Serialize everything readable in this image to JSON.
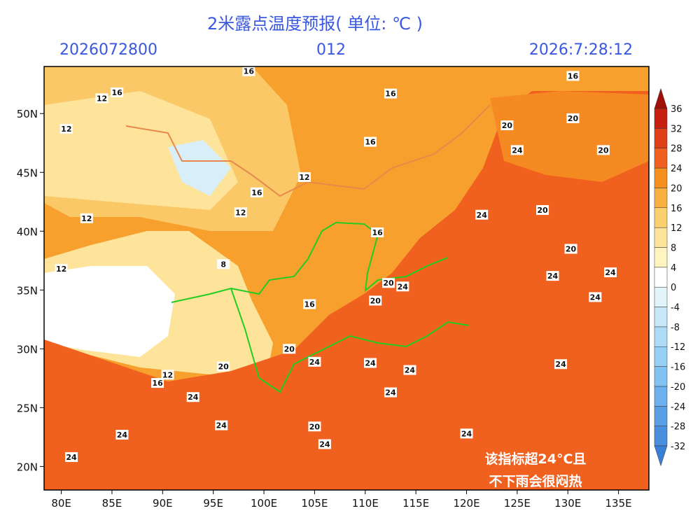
{
  "title": "2米露点温度预报( 单位: ℃ )",
  "run_time": "2026072800",
  "forecast_hour": "012",
  "valid_time": "2026:7:28:12",
  "map": {
    "lonlim": [
      78.3,
      138
    ],
    "latlim": [
      18,
      54
    ],
    "lon_ticks": [
      {
        "value": 80,
        "label": "80E"
      },
      {
        "value": 85,
        "label": "85E"
      },
      {
        "value": 90,
        "label": "90E"
      },
      {
        "value": 95,
        "label": "95E"
      },
      {
        "value": 100,
        "label": "100E"
      },
      {
        "value": 105,
        "label": "105E"
      },
      {
        "value": 110,
        "label": "110E"
      },
      {
        "value": 115,
        "label": "115E"
      },
      {
        "value": 120,
        "label": "120E"
      },
      {
        "value": 125,
        "label": "125E"
      },
      {
        "value": 130,
        "label": "130E"
      },
      {
        "value": 135,
        "label": "135E"
      }
    ],
    "lat_ticks": [
      {
        "value": 20,
        "label": "20N"
      },
      {
        "value": 25,
        "label": "25N"
      },
      {
        "value": 30,
        "label": "30N"
      },
      {
        "value": 35,
        "label": "35N"
      },
      {
        "value": 40,
        "label": "40N"
      },
      {
        "value": 45,
        "label": "45N"
      },
      {
        "value": 50,
        "label": "50N"
      }
    ],
    "contour_labels": [
      {
        "value": 16,
        "lon": 98.5,
        "lat": 53.6
      },
      {
        "value": 12,
        "lon": 84,
        "lat": 51.3
      },
      {
        "value": 16,
        "lon": 85.5,
        "lat": 51.8
      },
      {
        "value": 12,
        "lon": 80.5,
        "lat": 48.7
      },
      {
        "value": 16,
        "lon": 112.5,
        "lat": 51.7
      },
      {
        "value": 16,
        "lon": 130.5,
        "lat": 53.2
      },
      {
        "value": 20,
        "lon": 124,
        "lat": 49
      },
      {
        "value": 20,
        "lon": 130.5,
        "lat": 49.6
      },
      {
        "value": 16,
        "lon": 110.5,
        "lat": 47.6
      },
      {
        "value": 24,
        "lon": 125,
        "lat": 46.9
      },
      {
        "value": 20,
        "lon": 133.5,
        "lat": 46.9
      },
      {
        "value": 12,
        "lon": 104,
        "lat": 44.6
      },
      {
        "value": 16,
        "lon": 99.3,
        "lat": 43.3
      },
      {
        "value": 12,
        "lon": 97.7,
        "lat": 41.6
      },
      {
        "value": 16,
        "lon": 111.2,
        "lat": 39.9
      },
      {
        "value": 24,
        "lon": 121.5,
        "lat": 41.4
      },
      {
        "value": 20,
        "lon": 127.5,
        "lat": 41.8
      },
      {
        "value": 20,
        "lon": 130.3,
        "lat": 38.5
      },
      {
        "value": 24,
        "lon": 128.5,
        "lat": 36.2
      },
      {
        "value": 24,
        "lon": 134.2,
        "lat": 36.5
      },
      {
        "value": 20,
        "lon": 112.3,
        "lat": 35.6
      },
      {
        "value": 24,
        "lon": 113.7,
        "lat": 35.3
      },
      {
        "value": 20,
        "lon": 111,
        "lat": 34.1
      },
      {
        "value": 24,
        "lon": 132.7,
        "lat": 34.4
      },
      {
        "value": 24,
        "lon": 129.3,
        "lat": 28.7
      },
      {
        "value": 24,
        "lon": 110.5,
        "lat": 28.8
      },
      {
        "value": 24,
        "lon": 114.4,
        "lat": 28.2
      },
      {
        "value": 24,
        "lon": 112.5,
        "lat": 26.3
      },
      {
        "value": 24,
        "lon": 120,
        "lat": 22.8
      },
      {
        "value": 24,
        "lon": 81,
        "lat": 20.8
      },
      {
        "value": 24,
        "lon": 86,
        "lat": 22.7
      },
      {
        "value": 24,
        "lon": 93,
        "lat": 25.9
      },
      {
        "value": 24,
        "lon": 95.8,
        "lat": 23.5
      },
      {
        "value": 20,
        "lon": 105,
        "lat": 23.4
      },
      {
        "value": 24,
        "lon": 106,
        "lat": 21.9
      },
      {
        "value": 12,
        "lon": 82.5,
        "lat": 41.1
      },
      {
        "value": 8,
        "lon": 96,
        "lat": 37.2
      },
      {
        "value": 12,
        "lon": 80,
        "lat": 36.8
      },
      {
        "value": 16,
        "lon": 104.5,
        "lat": 33.8
      },
      {
        "value": 20,
        "lon": 102.5,
        "lat": 30
      },
      {
        "value": 24,
        "lon": 105,
        "lat": 28.9
      },
      {
        "value": 12,
        "lon": 90.5,
        "lat": 27.8
      },
      {
        "value": 16,
        "lon": 89.5,
        "lat": 27.1
      },
      {
        "value": 20,
        "lon": 96,
        "lat": 28.5
      }
    ]
  },
  "colorbar": {
    "levels": [
      -32,
      -28,
      -24,
      -20,
      -16,
      -12,
      -8,
      -4,
      0,
      4,
      8,
      12,
      16,
      20,
      24,
      28,
      32,
      36
    ],
    "colors": [
      "#3a7fd6",
      "#4a8ede",
      "#5a9ee6",
      "#6cb0ee",
      "#82c2f2",
      "#96d0f4",
      "#aedcf6",
      "#c6e8f8",
      "#e0f4fa",
      "#ffffff",
      "#fff4c0",
      "#fde49a",
      "#fbd070",
      "#f8b040",
      "#f59020",
      "#f06020",
      "#e04018",
      "#c82010",
      "#a01008"
    ]
  },
  "annotation": [
    "该指标超24°C且",
    "不下雨会很闷热"
  ]
}
